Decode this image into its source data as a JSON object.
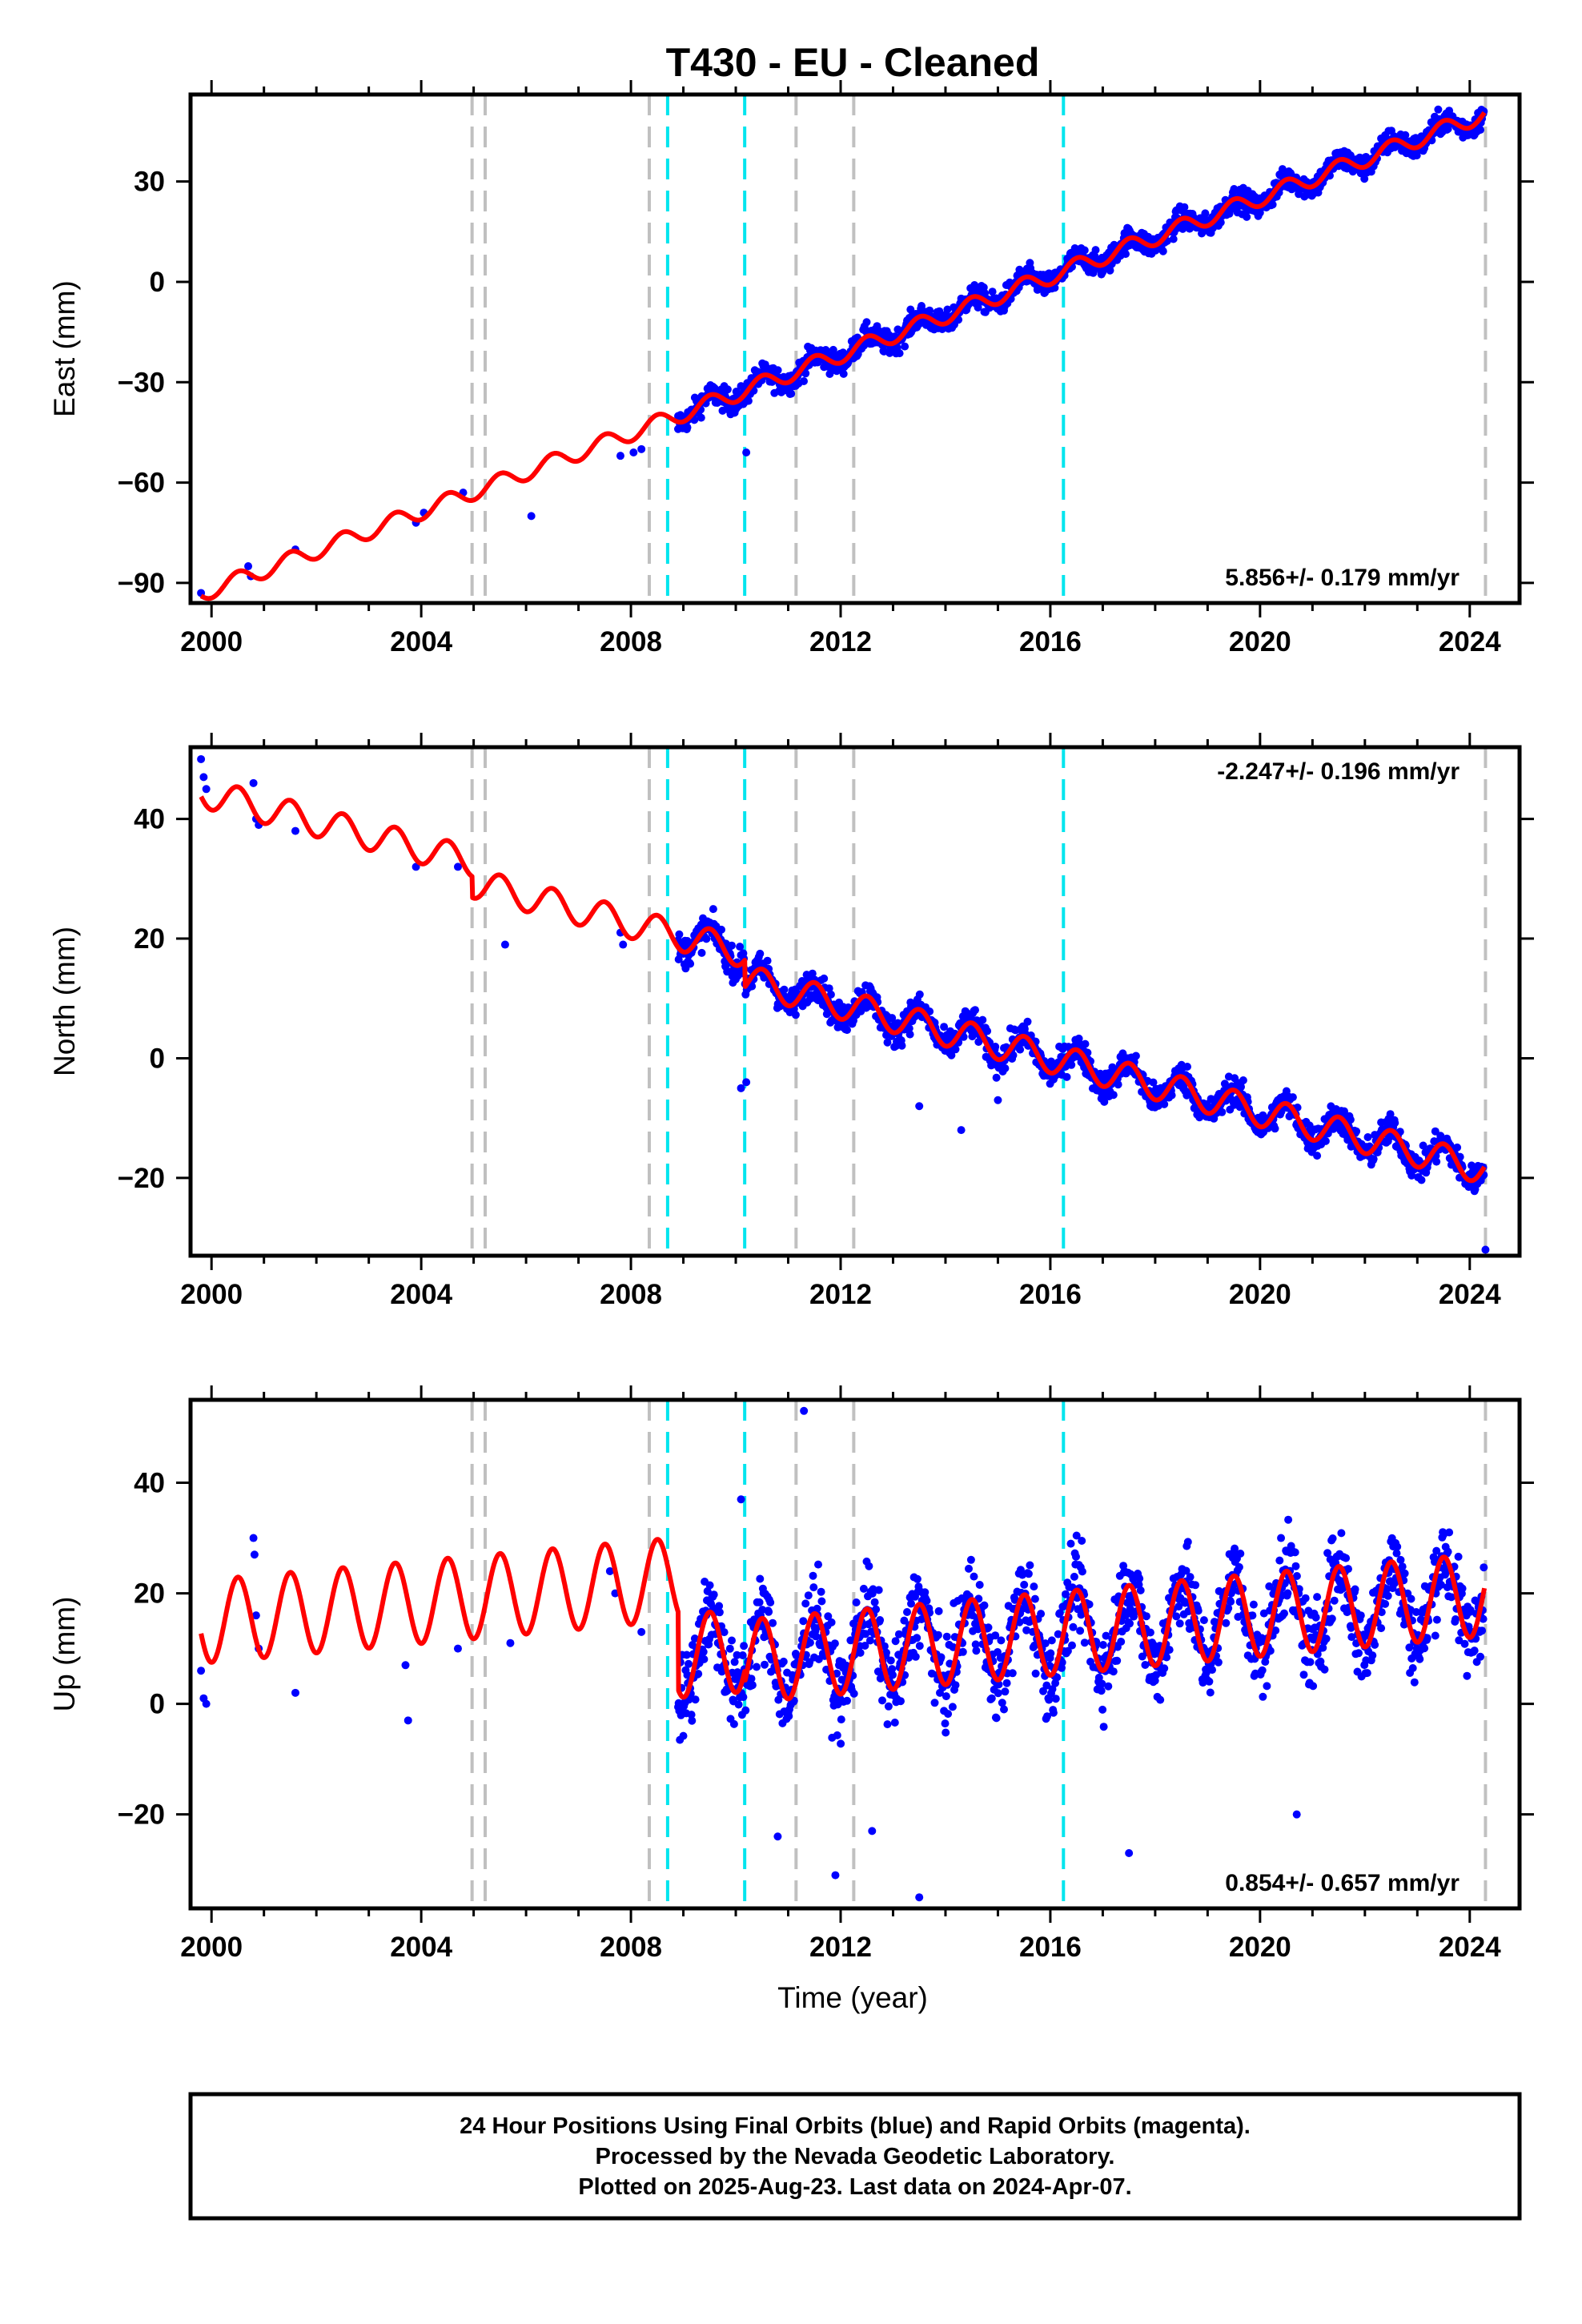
{
  "title": "T430  - EU - Cleaned",
  "x_axis_label": "Time (year)",
  "footer": {
    "line1": "24 Hour Positions Using Final Orbits (blue) and Rapid Orbits (magenta).",
    "line2": "Processed by the Nevada Geodetic Laboratory.",
    "line3": "Plotted on 2025-Aug-23. Last data on 2024-Apr-07."
  },
  "colors": {
    "data_points": "#0000ff",
    "model_fit": "#ff0000",
    "equipment_change_lines": "#c0c0c0",
    "earthquake_lines": "#00e5ee"
  },
  "chart_data": [
    {
      "type": "scatter",
      "component": "East",
      "ylabel": "East (mm)",
      "xlim": [
        1999.6,
        2024.95
      ],
      "ylim": [
        -96,
        56
      ],
      "xticks": [
        2000,
        2004,
        2008,
        2012,
        2016,
        2020,
        2024
      ],
      "yticks": [
        -90,
        -60,
        -30,
        0,
        30
      ],
      "ytick_labels": [
        "−90",
        "−60",
        "−30",
        "0",
        "30"
      ],
      "rate_text": "5.856+/- 0.179 mm/yr",
      "rate_position": "bottom-right",
      "rate_mm_per_yr": 5.856,
      "rate_sigma": 0.179,
      "value_at_2000": -92,
      "annual_amplitude": 2.5,
      "phase": -1.6,
      "noise": 2.5,
      "offsets": [],
      "sparse_points": [
        [
          1999.8,
          -93
        ],
        [
          2000.7,
          -85
        ],
        [
          2000.75,
          -88
        ],
        [
          2001.6,
          -80
        ],
        [
          2003.9,
          -72
        ],
        [
          2004.05,
          -69
        ],
        [
          2004.8,
          -63
        ],
        [
          2006.1,
          -70
        ],
        [
          2007.8,
          -52
        ],
        [
          2008.05,
          -51
        ],
        [
          2008.2,
          -50
        ]
      ],
      "outliers": [
        [
          2010.2,
          -51
        ],
        [
          2014.3,
          -5
        ],
        [
          2008.9,
          -44
        ]
      ],
      "equipment_changes": [
        2004.97,
        2005.22,
        2008.35,
        2011.15,
        2012.25,
        2024.3
      ],
      "earthquakes": [
        2008.7,
        2010.17,
        2016.25
      ]
    },
    {
      "type": "scatter",
      "component": "North",
      "ylabel": "North (mm)",
      "xlim": [
        1999.6,
        2024.95
      ],
      "ylim": [
        -33,
        52
      ],
      "xticks": [
        2000,
        2004,
        2008,
        2012,
        2016,
        2020,
        2024
      ],
      "yticks": [
        -20,
        0,
        20,
        40
      ],
      "ytick_labels": [
        "−20",
        "0",
        "20",
        "40"
      ],
      "rate_text": "-2.247+/- 0.196 mm/yr",
      "rate_position": "top-right",
      "rate_mm_per_yr": -2.247,
      "rate_sigma": 0.196,
      "value_at_2000": 44,
      "annual_amplitude": 2.5,
      "phase": -1.6,
      "noise": 1.8,
      "offsets": [
        [
          2004.97,
          -3.5
        ],
        [
          2010.17,
          -4.5
        ]
      ],
      "sparse_points": [
        [
          1999.8,
          50
        ],
        [
          1999.85,
          47
        ],
        [
          1999.9,
          45
        ],
        [
          2000.8,
          46
        ],
        [
          2000.85,
          40
        ],
        [
          2000.9,
          39
        ],
        [
          2001.6,
          38
        ],
        [
          2003.9,
          32
        ],
        [
          2004.7,
          32
        ],
        [
          2005.6,
          19
        ],
        [
          2007.8,
          21
        ],
        [
          2007.85,
          19
        ]
      ],
      "outliers": [
        [
          2010.1,
          -5
        ],
        [
          2010.2,
          -4
        ],
        [
          2013.5,
          -8
        ],
        [
          2015.0,
          -7
        ],
        [
          2014.3,
          -12
        ],
        [
          2024.3,
          -32
        ]
      ],
      "equipment_changes": [
        2004.97,
        2005.22,
        2008.35,
        2011.15,
        2012.25,
        2024.3
      ],
      "earthquakes": [
        2008.7,
        2010.17,
        2016.25
      ]
    },
    {
      "type": "scatter",
      "component": "Up",
      "ylabel": "Up (mm)",
      "xlim": [
        1999.6,
        2024.95
      ],
      "ylim": [
        -37,
        55
      ],
      "xticks": [
        2000,
        2004,
        2008,
        2012,
        2016,
        2020,
        2024
      ],
      "yticks": [
        -20,
        0,
        20,
        40
      ],
      "ytick_labels": [
        "−20",
        "0",
        "20",
        "40"
      ],
      "rate_text": "0.854+/- 0.657 mm/yr",
      "rate_position": "bottom-right",
      "rate_mm_per_yr": 0.854,
      "rate_sigma": 0.657,
      "value_at_2000": 15,
      "annual_amplitude": 7.5,
      "phase": -1.6,
      "noise": 5.5,
      "offsets": [
        [
          2008.9,
          -14
        ],
        [
          2010.17,
          -2
        ]
      ],
      "sparse_points": [
        [
          1999.8,
          6
        ],
        [
          1999.85,
          1
        ],
        [
          1999.9,
          0
        ],
        [
          2000.8,
          30
        ],
        [
          2000.82,
          27
        ],
        [
          2000.85,
          16
        ],
        [
          2000.9,
          10
        ],
        [
          2001.6,
          2
        ],
        [
          2003.7,
          7
        ],
        [
          2003.75,
          -3
        ],
        [
          2004.7,
          10
        ],
        [
          2005.7,
          11
        ],
        [
          2007.6,
          24
        ],
        [
          2007.7,
          20
        ],
        [
          2008.2,
          13
        ]
      ],
      "outliers": [
        [
          2011.3,
          53
        ],
        [
          2010.1,
          37
        ],
        [
          2011.9,
          -31
        ],
        [
          2013.5,
          -35
        ],
        [
          2012.6,
          -23
        ],
        [
          2017.5,
          -27
        ],
        [
          2020.7,
          -20
        ],
        [
          2020.4,
          30
        ],
        [
          2010.8,
          -24
        ]
      ],
      "equipment_changes": [
        2004.97,
        2005.22,
        2008.35,
        2011.15,
        2012.25,
        2024.3
      ],
      "earthquakes": [
        2008.7,
        2010.17,
        2016.25
      ]
    }
  ]
}
